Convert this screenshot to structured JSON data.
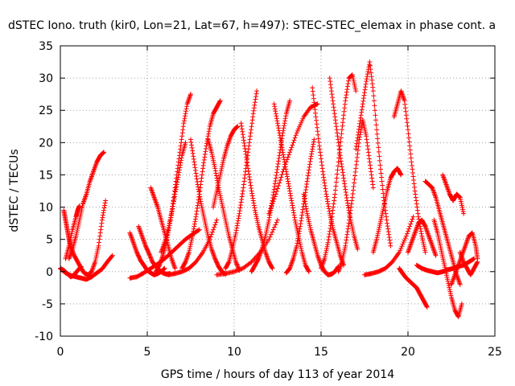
{
  "chart_data": {
    "type": "scatter",
    "title": "dSTEC Iono. truth (kir0, Lon=21, Lat=67, h=497): STEC-STEC_elemax in phase cont. a",
    "xlabel": "GPS time / hours of day 113 of year 2014",
    "ylabel": "dSTEC  / TECUs",
    "xlim": [
      0,
      25
    ],
    "ylim": [
      -10,
      35
    ],
    "xticks": [
      0,
      5,
      10,
      15,
      20,
      25
    ],
    "yticks": [
      -10,
      -5,
      0,
      5,
      10,
      15,
      20,
      25,
      30,
      35
    ],
    "grid": true,
    "marker": "plus",
    "color": "#ff0000",
    "series": [
      {
        "x": [
          0.0,
          0.2,
          0.4,
          0.6,
          0.8,
          1.0,
          1.2
        ],
        "y": [
          0.5,
          0.2,
          -0.3,
          -0.8,
          -0.5,
          0.2,
          0.8
        ]
      },
      {
        "x": [
          0.2,
          0.3,
          0.4,
          0.5,
          0.6,
          0.8,
          1.0,
          1.2,
          1.4,
          1.6,
          1.8,
          2.0,
          2.2,
          2.4,
          2.6
        ],
        "y": [
          9.5,
          8.0,
          6.5,
          5.0,
          3.8,
          2.5,
          1.5,
          0.5,
          -0.3,
          -0.5,
          0.0,
          1.5,
          4.0,
          8.0,
          11.0
        ]
      },
      {
        "x": [
          0.0,
          0.3,
          0.6,
          0.9,
          1.2,
          1.5,
          1.8,
          2.1,
          2.4,
          2.7,
          3.0
        ],
        "y": [
          0.5,
          -0.2,
          -0.6,
          -0.8,
          -1.0,
          -1.2,
          -0.8,
          -0.2,
          0.4,
          1.5,
          2.5
        ]
      },
      {
        "x": [
          0.5,
          0.7,
          0.9,
          1.1,
          1.3,
          1.5,
          1.7,
          1.9,
          2.1,
          2.3,
          2.5
        ],
        "y": [
          2.0,
          3.5,
          5.5,
          8.0,
          10.5,
          12.0,
          14.0,
          15.5,
          17.0,
          18.0,
          18.5
        ]
      },
      {
        "x": [
          0.3,
          0.5,
          0.7,
          0.9,
          1.0,
          1.1
        ],
        "y": [
          2.0,
          4.0,
          6.5,
          8.5,
          9.5,
          10.2
        ]
      },
      {
        "x": [
          4.0,
          4.2,
          4.4,
          4.6,
          4.8,
          5.0,
          5.2,
          5.4,
          5.6,
          5.8,
          6.0
        ],
        "y": [
          6.0,
          4.5,
          3.0,
          1.8,
          1.0,
          0.2,
          -0.2,
          -0.5,
          -0.3,
          0.0,
          0.5
        ]
      },
      {
        "x": [
          4.0,
          4.4,
          4.8,
          5.2,
          5.6,
          6.0,
          6.4,
          6.8,
          7.2,
          7.6,
          8.0
        ],
        "y": [
          -1.0,
          -0.8,
          -0.2,
          0.5,
          1.2,
          2.0,
          3.0,
          4.0,
          5.0,
          5.8,
          6.5
        ]
      },
      {
        "x": [
          4.5,
          4.7,
          4.9,
          5.1,
          5.3,
          5.5,
          5.7,
          5.9,
          6.1,
          6.3
        ],
        "y": [
          7.0,
          5.5,
          4.0,
          2.8,
          1.5,
          0.8,
          0.2,
          -0.2,
          -0.4,
          -0.3
        ]
      },
      {
        "x": [
          5.5,
          5.7,
          5.9,
          6.1,
          6.3,
          6.5,
          6.7,
          6.9,
          7.1,
          7.3,
          7.5
        ],
        "y": [
          0.0,
          1.0,
          2.5,
          4.5,
          7.5,
          11.0,
          15.0,
          19.0,
          23.0,
          26.0,
          27.5
        ]
      },
      {
        "x": [
          5.2,
          5.4,
          5.6,
          5.8,
          6.0,
          6.2,
          6.4,
          6.6
        ],
        "y": [
          13.0,
          11.5,
          10.0,
          8.0,
          6.0,
          4.0,
          2.0,
          0.5
        ]
      },
      {
        "x": [
          5.8,
          6.0,
          6.2,
          6.4,
          6.6,
          6.8,
          7.0,
          7.2
        ],
        "y": [
          3.0,
          4.5,
          6.5,
          9.0,
          12.0,
          15.0,
          18.0,
          20.0
        ]
      },
      {
        "x": [
          6.2,
          6.6,
          7.0,
          7.4,
          7.8,
          8.2,
          8.6,
          9.0
        ],
        "y": [
          -0.5,
          -0.3,
          0.0,
          0.5,
          1.5,
          3.0,
          5.0,
          8.0
        ]
      },
      {
        "x": [
          7.0,
          7.2,
          7.4,
          7.6,
          7.8,
          8.0,
          8.2,
          8.4,
          8.6,
          8.8,
          9.0,
          9.2
        ],
        "y": [
          0.5,
          1.5,
          3.0,
          5.5,
          8.5,
          12.0,
          16.0,
          19.5,
          22.5,
          24.5,
          25.5,
          26.5
        ]
      },
      {
        "x": [
          7.5,
          7.7,
          7.9,
          8.1,
          8.3,
          8.5,
          8.7,
          8.9,
          9.1,
          9.3,
          9.5
        ],
        "y": [
          20.5,
          17.0,
          13.5,
          10.5,
          8.0,
          5.5,
          3.5,
          2.0,
          0.8,
          0.0,
          -0.4
        ]
      },
      {
        "x": [
          8.5,
          8.7,
          8.9,
          9.1,
          9.3,
          9.5,
          9.7,
          9.9,
          10.1,
          10.3
        ],
        "y": [
          20.5,
          18.5,
          16.0,
          13.0,
          10.5,
          8.0,
          5.5,
          3.5,
          1.5,
          0.2
        ]
      },
      {
        "x": [
          8.8,
          9.0,
          9.2,
          9.4,
          9.6,
          9.8,
          10.0,
          10.2
        ],
        "y": [
          10.0,
          12.5,
          15.0,
          17.5,
          19.5,
          21.0,
          22.0,
          22.5
        ]
      },
      {
        "x": [
          9.0,
          9.5,
          10.0,
          10.5,
          11.0,
          11.5,
          12.0,
          12.5
        ],
        "y": [
          -0.5,
          -0.3,
          0.0,
          0.5,
          1.5,
          3.0,
          5.0,
          8.0
        ]
      },
      {
        "x": [
          9.5,
          9.7,
          9.9,
          10.1,
          10.3,
          10.5,
          10.7,
          10.9,
          11.1,
          11.3
        ],
        "y": [
          0.5,
          1.5,
          3.5,
          6.0,
          9.0,
          12.5,
          16.5,
          20.5,
          24.5,
          28.0
        ]
      },
      {
        "x": [
          10.4,
          10.6,
          10.8,
          11.0,
          11.2,
          11.4,
          11.6,
          11.8,
          12.0,
          12.2
        ],
        "y": [
          23.0,
          19.5,
          16.0,
          12.5,
          9.5,
          7.0,
          5.0,
          3.0,
          1.5,
          0.5
        ]
      },
      {
        "x": [
          11.0,
          11.2,
          11.4,
          11.6,
          11.8,
          12.0,
          12.2,
          12.4,
          12.6,
          12.8,
          13.0,
          13.2
        ],
        "y": [
          0.0,
          1.0,
          2.0,
          3.5,
          5.5,
          8.0,
          11.0,
          14.5,
          18.0,
          21.5,
          24.5,
          26.5
        ]
      },
      {
        "x": [
          12.3,
          12.5,
          12.7,
          12.9,
          13.1,
          13.3,
          13.5,
          13.7,
          13.9,
          14.1,
          14.3
        ],
        "y": [
          26.0,
          23.0,
          20.0,
          17.0,
          14.0,
          11.0,
          8.0,
          5.5,
          3.0,
          1.0,
          0.0
        ]
      },
      {
        "x": [
          12.0,
          12.4,
          12.8,
          13.2,
          13.6,
          14.0,
          14.4,
          14.8
        ],
        "y": [
          9.0,
          12.0,
          15.5,
          18.5,
          21.5,
          24.0,
          25.5,
          26.0
        ]
      },
      {
        "x": [
          13.0,
          13.2,
          13.4,
          13.6,
          13.8,
          14.0,
          14.2,
          14.4,
          14.6
        ],
        "y": [
          -0.2,
          0.5,
          2.0,
          4.0,
          7.0,
          10.5,
          14.0,
          17.5,
          20.5
        ]
      },
      {
        "x": [
          14.0,
          14.2,
          14.4,
          14.6,
          14.8,
          15.0,
          15.2,
          15.4,
          15.6,
          15.8,
          16.0
        ],
        "y": [
          12.0,
          9.0,
          6.5,
          4.5,
          2.5,
          1.0,
          0.0,
          -0.5,
          -0.4,
          0.0,
          0.8
        ]
      },
      {
        "x": [
          14.5,
          14.7,
          14.9,
          15.1,
          15.3,
          15.5,
          15.7,
          15.9,
          16.1,
          16.3
        ],
        "y": [
          28.5,
          24.0,
          19.5,
          15.5,
          12.0,
          9.0,
          6.5,
          4.5,
          2.5,
          1.0
        ]
      },
      {
        "x": [
          15.0,
          15.2,
          15.4,
          15.6,
          15.8,
          16.0,
          16.2,
          16.4,
          16.6,
          16.8,
          17.0
        ],
        "y": [
          0.5,
          2.0,
          4.5,
          8.0,
          12.0,
          17.0,
          22.0,
          26.5,
          30.0,
          30.5,
          28.0
        ]
      },
      {
        "x": [
          15.5,
          15.7,
          15.9,
          16.1,
          16.3,
          16.5,
          16.7,
          16.9,
          17.1
        ],
        "y": [
          30.0,
          26.0,
          22.0,
          18.0,
          14.5,
          11.0,
          8.0,
          5.5,
          3.5
        ]
      },
      {
        "x": [
          16.0,
          16.2,
          16.4,
          16.6,
          16.8,
          17.0,
          17.2,
          17.4,
          17.6,
          17.8,
          18.0
        ],
        "y": [
          0.0,
          1.5,
          4.0,
          7.5,
          11.5,
          16.0,
          20.5,
          23.5,
          21.0,
          17.0,
          13.0
        ]
      },
      {
        "x": [
          17.0,
          17.2,
          17.4,
          17.6,
          17.8,
          18.0,
          18.2,
          18.4,
          18.6,
          18.8,
          19.0
        ],
        "y": [
          19.0,
          22.5,
          26.0,
          29.5,
          32.5,
          28.0,
          22.0,
          16.5,
          11.5,
          7.5,
          4.0
        ]
      },
      {
        "x": [
          17.5,
          17.9,
          18.3,
          18.7,
          19.1,
          19.5,
          19.9,
          20.3
        ],
        "y": [
          -0.5,
          -0.3,
          0.0,
          0.5,
          1.5,
          3.0,
          5.5,
          8.5
        ]
      },
      {
        "x": [
          18.0,
          18.2,
          18.4,
          18.6,
          18.8,
          19.0,
          19.2,
          19.4,
          19.6
        ],
        "y": [
          3.0,
          5.0,
          7.5,
          10.0,
          12.5,
          14.5,
          15.5,
          16.0,
          15.0
        ]
      },
      {
        "x": [
          19.2,
          19.4,
          19.6,
          19.8,
          20.0,
          20.2,
          20.4,
          20.6,
          20.8,
          21.0
        ],
        "y": [
          24.0,
          26.0,
          28.0,
          26.5,
          22.0,
          17.0,
          12.5,
          8.5,
          5.5,
          3.0
        ]
      },
      {
        "x": [
          19.5,
          19.7,
          19.9,
          20.1,
          20.3,
          20.5,
          20.7,
          20.9,
          21.1
        ],
        "y": [
          0.5,
          -0.3,
          -1.0,
          -1.5,
          -2.0,
          -2.5,
          -3.5,
          -4.5,
          -5.5
        ]
      },
      {
        "x": [
          20.0,
          20.2,
          20.4,
          20.6,
          20.8,
          21.0,
          21.2,
          21.4,
          21.6
        ],
        "y": [
          3.0,
          4.5,
          6.0,
          7.5,
          8.0,
          7.0,
          5.5,
          4.0,
          2.5
        ]
      },
      {
        "x": [
          20.5,
          20.8,
          21.1,
          21.4,
          21.7,
          22.0,
          22.3,
          22.6,
          22.9,
          23.2,
          23.5,
          23.8
        ],
        "y": [
          1.0,
          0.5,
          0.2,
          0.0,
          -0.2,
          0.0,
          0.3,
          0.5,
          0.8,
          1.0,
          1.5,
          2.0
        ]
      },
      {
        "x": [
          21.0,
          21.2,
          21.4,
          21.6,
          21.8,
          22.0,
          22.2,
          22.4,
          22.6,
          22.8,
          23.0
        ],
        "y": [
          14.0,
          13.5,
          13.0,
          11.5,
          9.5,
          7.5,
          5.5,
          3.5,
          1.5,
          -0.5,
          -2.0
        ]
      },
      {
        "x": [
          21.5,
          21.7,
          21.9,
          22.1,
          22.3,
          22.5,
          22.7,
          22.9,
          23.1
        ],
        "y": [
          8.0,
          6.0,
          3.5,
          1.0,
          -1.5,
          -4.0,
          -6.0,
          -7.0,
          -5.0
        ]
      },
      {
        "x": [
          22.0,
          22.2,
          22.4,
          22.6,
          22.8,
          23.0,
          23.2
        ],
        "y": [
          15.0,
          13.5,
          12.0,
          11.0,
          12.0,
          11.5,
          9.0
        ]
      },
      {
        "x": [
          22.5,
          22.7,
          22.9,
          23.1,
          23.3,
          23.5,
          23.7,
          23.9,
          24.0
        ],
        "y": [
          -2.0,
          -0.5,
          1.0,
          2.5,
          4.0,
          5.5,
          6.0,
          4.0,
          2.0
        ]
      },
      {
        "x": [
          23.0,
          23.2,
          23.4,
          23.6,
          23.8,
          24.0
        ],
        "y": [
          3.0,
          1.5,
          0.5,
          -0.5,
          0.5,
          1.5
        ]
      }
    ]
  }
}
